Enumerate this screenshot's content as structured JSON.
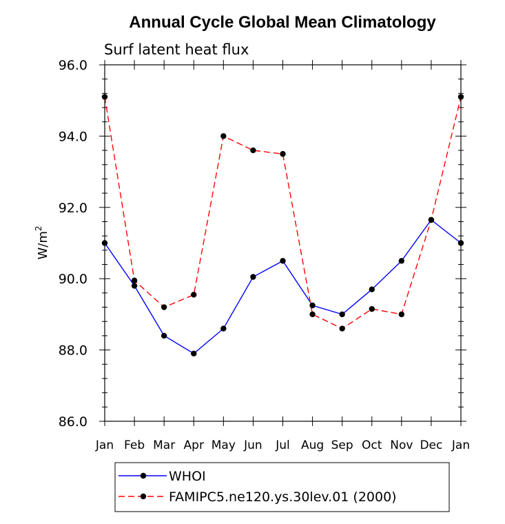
{
  "chart_data": {
    "type": "line",
    "title": "Annual Cycle Global Mean Climatology",
    "subtitle": "Surf latent heat flux",
    "ylabel": "W/m",
    "ylabel_sup": "2",
    "ylim": [
      86.0,
      96.0
    ],
    "yticks": [
      "86.0",
      "88.0",
      "90.0",
      "92.0",
      "94.0",
      "96.0"
    ],
    "categories": [
      "Jan",
      "Feb",
      "Mar",
      "Apr",
      "May",
      "Jun",
      "Jul",
      "Aug",
      "Sep",
      "Oct",
      "Nov",
      "Dec",
      "Jan"
    ],
    "series": [
      {
        "name": "WHOI",
        "color": "#0000ff",
        "dash": "solid",
        "values": [
          91.0,
          89.8,
          88.4,
          87.9,
          88.6,
          90.05,
          90.5,
          89.25,
          89.0,
          89.7,
          90.5,
          91.65,
          91.0
        ]
      },
      {
        "name": "FAMIPC5.ne120.ys.30lev.01 (2000)",
        "color": "#ff0000",
        "dash": "dashed",
        "values": [
          95.1,
          89.95,
          89.2,
          89.55,
          94.0,
          93.6,
          93.5,
          89.0,
          88.6,
          89.15,
          89.0,
          91.65,
          95.1
        ]
      }
    ]
  }
}
